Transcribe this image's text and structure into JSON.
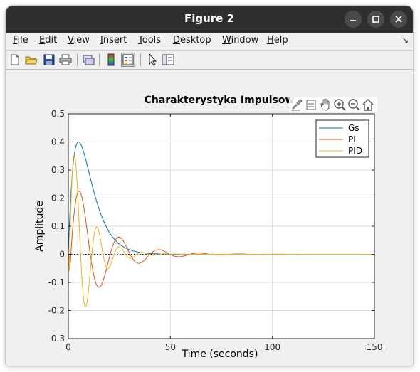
{
  "window": {
    "title": "Figure 2"
  },
  "menu": {
    "items": [
      {
        "key": "F",
        "rest": "ile"
      },
      {
        "key": "E",
        "rest": "dit"
      },
      {
        "key": "V",
        "rest": "iew"
      },
      {
        "key": "I",
        "rest": "nsert"
      },
      {
        "key": "T",
        "rest": "ools"
      },
      {
        "key": "D",
        "rest": "esktop"
      },
      {
        "key": "W",
        "rest": "indow"
      },
      {
        "key": "H",
        "rest": "elp"
      }
    ]
  },
  "toolbar": {
    "icons": [
      "new-figure-icon",
      "open-file-icon",
      "save-icon",
      "print-icon",
      "link-plot-icon",
      "colorbar-icon",
      "legend-icon",
      "edit-plot-icon",
      "property-inspector-icon"
    ]
  },
  "axes_toolbar": {
    "icons": [
      "brush-icon",
      "data-tips-icon",
      "pan-icon",
      "zoom-in-icon",
      "zoom-out-icon",
      "home-icon"
    ]
  },
  "chart_data": {
    "type": "line",
    "title": "Charakterystyka Impulsow",
    "xlabel": "Time (seconds)",
    "ylabel": "Amplitude",
    "xlim": [
      0,
      150
    ],
    "ylim": [
      -0.3,
      0.5
    ],
    "xticks": [
      "0",
      "50",
      "100",
      "150"
    ],
    "yticks": [
      "-0.3",
      "-0.2",
      "-0.1",
      "0",
      "0.1",
      "0.2",
      "0.3",
      "0.4",
      "0.5"
    ],
    "grid": true,
    "legend_position": "top-right",
    "series": [
      {
        "name": "Gs",
        "color": "#0072BD",
        "model": "gs"
      },
      {
        "name": "PI",
        "color": "#D95319",
        "model": "pi"
      },
      {
        "name": "PID",
        "color": "#EDB120",
        "model": "pid"
      }
    ]
  }
}
